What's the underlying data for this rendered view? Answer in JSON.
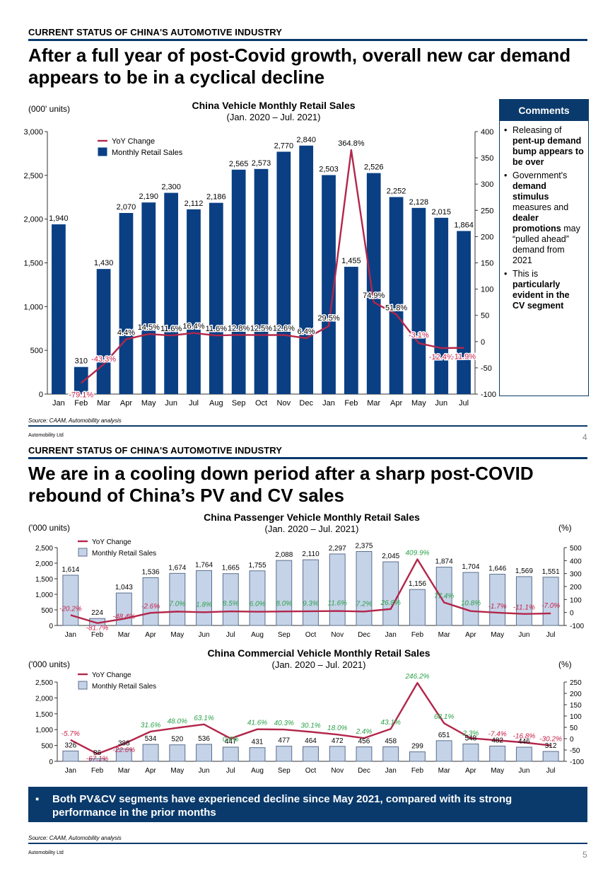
{
  "page1": {
    "section_label": "CURRENT STATUS OF CHINA'S AUTOMOTIVE INDUSTRY",
    "headline_line1": "After a full year of post-Covid growth, overall new car demand",
    "headline_line2": "appears to be in a cyclical decline",
    "source": "Source: CAAM, Automobility analysis",
    "footer_left": "Automobility Ltd",
    "page_number": "4",
    "comments": {
      "title": "Comments",
      "items": [
        {
          "pre": "Releasing of ",
          "bold": "pent-up demand bump appears to be over",
          "post": ""
        },
        {
          "pre": "Government's ",
          "bold": "demand stimulus",
          "mid": " measures and ",
          "bold2": "dealer promotions",
          "post": " may “pulled ahead” demand from 2021"
        },
        {
          "pre": "This is ",
          "bold": "particularly evident in the CV segment",
          "post": ""
        }
      ]
    }
  },
  "page2": {
    "section_label": "CURRENT STATUS OF CHINA'S AUTOMOTIVE INDUSTRY",
    "headline_line1": "We are in a cooling down period after a sharp post-COVID",
    "headline_line2": "rebound of China’s PV and CV sales",
    "banner_bullet": "▪",
    "banner_text_line1": "Both PV&CV segments have experienced decline since May 2021, compared with its strong",
    "banner_text_line2": "performance in the prior months",
    "source": "Source: CAAM, Automobility analysis",
    "footer_left": "Automobility Ltd",
    "page_number": "5"
  },
  "colors": {
    "bar_dark": "#0a3f84",
    "bar_light": "#c5d3e8",
    "line": "#b3264a",
    "pos_label": "#2ca24a",
    "neg_label": "#c8234a",
    "navy": "#0a3a6b"
  },
  "chart_data": [
    {
      "type": "bar",
      "title": "China Vehicle Monthly Retail Sales",
      "subtitle": "(Jan. 2020 – Jul. 2021)",
      "ylabel": "(000' units)",
      "categories": [
        "Jan",
        "Feb",
        "Mar",
        "Apr",
        "May",
        "Jun",
        "Jul",
        "Aug",
        "Sep",
        "Oct",
        "Nov",
        "Dec",
        "Jan",
        "Feb",
        "Mar",
        "Apr",
        "May",
        "Jun",
        "Jul"
      ],
      "ylim": [
        0,
        3000
      ],
      "yticks": [
        "0",
        "500",
        "1,000",
        "1,500",
        "2,000",
        "2,500",
        "3,000"
      ],
      "y2lim": [
        -100,
        400
      ],
      "y2ticks": [
        "-100",
        "-50",
        "0",
        "50",
        "100",
        "150",
        "200",
        "250",
        "300",
        "350",
        "400"
      ],
      "legend": [
        "YoY Change",
        "Monthly Retail Sales"
      ],
      "series": [
        {
          "name": "Monthly Retail Sales",
          "values": [
            1940,
            310,
            1430,
            2070,
            2190,
            2300,
            2112,
            2186,
            2565,
            2573,
            2770,
            2840,
            2503,
            1455,
            2526,
            2252,
            2128,
            2015,
            1864
          ],
          "labels": [
            "1,940",
            "310",
            "1,430",
            "2,070",
            "2,190",
            "2,300",
            "2,112",
            "2,186",
            "2,565",
            "2,573",
            "2,770",
            "2,840",
            "2,503",
            "1,455",
            "2,526",
            "2,252",
            "2,128",
            "2,015",
            "1,864"
          ]
        },
        {
          "name": "YoY Change",
          "values": [
            null,
            -79.1,
            -43.3,
            4.4,
            14.5,
            11.6,
            16.4,
            11.6,
            12.8,
            12.5,
            12.6,
            6.4,
            29.5,
            364.8,
            74.9,
            51.8,
            -3.1,
            -12.4,
            -11.9
          ],
          "labels": [
            "",
            "-79.1%",
            "-43.3%",
            "4.4%",
            "14.5%",
            "11.6%",
            "16.4%",
            "11.6%",
            "12.8%",
            "12.5%",
            "12.6%",
            "6.4%",
            "29.5%",
            "364.8%",
            "74.9%",
            "51.8%",
            "-3.1%",
            "-12.4%",
            "-11.9%"
          ]
        }
      ]
    },
    {
      "type": "bar",
      "title": "China Passenger Vehicle Monthly Retail Sales",
      "subtitle": "(Jan. 2020 – Jul. 2021)",
      "ylabel": "('000 units)",
      "y2label": "(%)",
      "categories": [
        "Jan",
        "Feb",
        "Mar",
        "Apr",
        "May",
        "Jun",
        "Jul",
        "Aug",
        "Sep",
        "Oct",
        "Nov",
        "Dec",
        "Jan",
        "Feb",
        "Mar",
        "Apr",
        "May",
        "Jun",
        "Jul"
      ],
      "ylim": [
        0,
        2500
      ],
      "yticks": [
        "0",
        "500",
        "1,000",
        "1,500",
        "2,000",
        "2,500"
      ],
      "y2lim": [
        -100,
        500
      ],
      "y2ticks": [
        "-100",
        "0",
        "100",
        "200",
        "300",
        "400",
        "500"
      ],
      "legend": [
        "YoY Change",
        "Monthly Retail Sales"
      ],
      "series": [
        {
          "name": "Monthly Retail Sales",
          "values": [
            1614,
            224,
            1043,
            1536,
            1674,
            1764,
            1665,
            1755,
            2088,
            2110,
            2297,
            2375,
            2045,
            1156,
            1874,
            1704,
            1646,
            1569,
            1551
          ],
          "labels": [
            "1,614",
            "224",
            "1,043",
            "1,536",
            "1,674",
            "1,764",
            "1,665",
            "1,755",
            "2,088",
            "2,110",
            "2,297",
            "2,375",
            "2,045",
            "1,156",
            "1,874",
            "1,704",
            "1,646",
            "1,569",
            "1,551"
          ]
        },
        {
          "name": "YoY Change",
          "values": [
            -20.2,
            -81.7,
            -48.4,
            -2.6,
            7.0,
            1.8,
            8.5,
            6.0,
            8.0,
            9.3,
            11.6,
            7.2,
            26.8,
            409.9,
            77.4,
            10.8,
            -1.7,
            -11.1,
            -7.0
          ],
          "labels": [
            "-20.2%",
            "-81.7%",
            "-48.4%",
            "-2.6%",
            "7.0%",
            "1.8%",
            "8.5%",
            "6.0%",
            "8.0%",
            "9.3%",
            "11.6%",
            "7.2%",
            "26.8%",
            "409.9%",
            "77.4%",
            "10.8%",
            "-1.7%",
            "-11.1%",
            "-7.0%"
          ]
        }
      ]
    },
    {
      "type": "bar",
      "title": "China Commercial Vehicle Monthly Retail Sales",
      "subtitle": "(Jan. 2020 – Jul. 2021)",
      "ylabel": "('000 units)",
      "y2label": "(%)",
      "categories": [
        "Jan",
        "Feb",
        "Mar",
        "Apr",
        "May",
        "Jun",
        "Jul",
        "Aug",
        "Sep",
        "Oct",
        "Nov",
        "Dec",
        "Jan",
        "Feb",
        "Mar",
        "Apr",
        "May",
        "Jun",
        "Jul"
      ],
      "ylim": [
        0,
        2500
      ],
      "yticks": [
        "0",
        "500",
        "1,000",
        "1,500",
        "2,000",
        "2,500"
      ],
      "y2lim": [
        -100,
        250
      ],
      "y2ticks": [
        "-100",
        "-50",
        "0",
        "50",
        "100",
        "150",
        "200",
        "250"
      ],
      "legend": [
        "YoY Change",
        "Monthly Retail Sales"
      ],
      "series": [
        {
          "name": "Monthly Retail Sales",
          "values": [
            326,
            86,
            388,
            534,
            520,
            536,
            447,
            431,
            477,
            464,
            472,
            456,
            458,
            299,
            651,
            548,
            482,
            446,
            312
          ],
          "labels": [
            "326",
            "86",
            "388",
            "534",
            "520",
            "536",
            "447",
            "431",
            "477",
            "464",
            "472",
            "456",
            "458",
            "299",
            "651",
            "548",
            "482",
            "446",
            "312"
          ]
        },
        {
          "name": "YoY Change",
          "values": [
            -5.7,
            -67.1,
            -22.6,
            31.6,
            48.0,
            63.1,
            0.6,
            41.6,
            40.3,
            30.1,
            18.0,
            2.4,
            43.1,
            246.2,
            68.1,
            2.3,
            -7.4,
            -16.8,
            -30.2
          ],
          "labels": [
            "-5.7%",
            "-67.1%",
            "-22.6%",
            "31.6%",
            "48.0%",
            "63.1%",
            "0.6%",
            "41.6%",
            "40.3%",
            "30.1%",
            "18.0%",
            "2.4%",
            "43.1%",
            "246.2%",
            "68.1%",
            "2.3%",
            "-7.4%",
            "-16.8%",
            "-30.2%"
          ]
        }
      ]
    }
  ]
}
